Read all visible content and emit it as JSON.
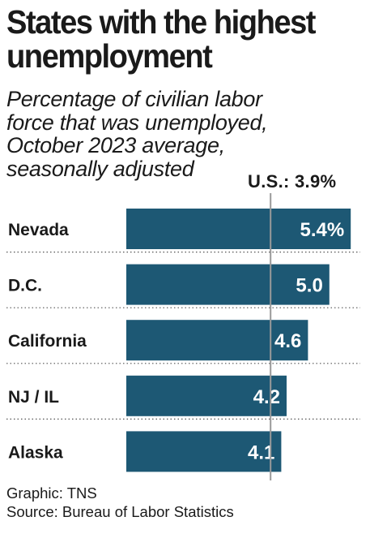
{
  "title_line1": "States with the highest",
  "title_line2": "unemployment",
  "subtitle_lines": [
    "Percentage of civilian labor",
    "force that was unemployed,",
    "October 2023 average,",
    "seasonally adjusted"
  ],
  "reference_label": "U.S.: 3.9%",
  "footer": {
    "credit": "Graphic: TNS",
    "source": "Source: Bureau of Labor Statistics"
  },
  "colors": {
    "bar": "#1d5874",
    "bar_text": "#ffffff",
    "text": "#1a1a1a",
    "divider": "#555555",
    "reference_line": "#9a9a9a"
  },
  "chart_data": {
    "type": "bar",
    "orientation": "horizontal",
    "categories": [
      "Nevada",
      "D.C.",
      "California",
      "NJ / IL",
      "Alaska"
    ],
    "values": [
      5.4,
      5.0,
      4.6,
      4.2,
      4.1
    ],
    "value_labels": [
      "5.4%",
      "5.0",
      "4.6",
      "4.2",
      "4.1"
    ],
    "reference": {
      "label": "U.S.: 3.9%",
      "value": 3.9
    },
    "title": "States with the highest unemployment",
    "subtitle": "Percentage of civilian labor force that was unemployed, October 2023 average, seasonally adjusted",
    "xlabel": "",
    "ylabel": "",
    "grid": false,
    "legend": "none"
  }
}
